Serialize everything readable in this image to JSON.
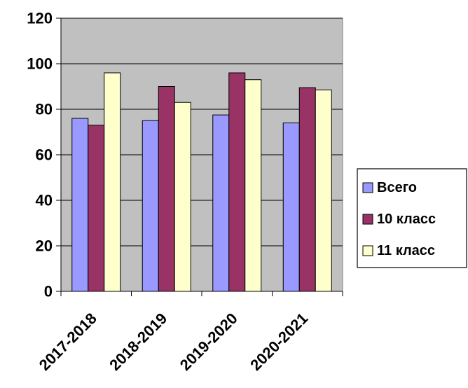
{
  "chart_data": {
    "type": "bar",
    "title": "",
    "xlabel": "",
    "ylabel": "",
    "categories": [
      "2017-2018",
      "2018-2019",
      "2019-2020",
      "2020-2021"
    ],
    "series": [
      {
        "name": "Всего",
        "values": [
          76,
          75,
          77.5,
          74
        ],
        "color": "#9999ff"
      },
      {
        "name": "10 класс",
        "values": [
          73,
          90,
          96,
          89.5
        ],
        "color": "#993366"
      },
      {
        "name": "11 класс",
        "values": [
          96,
          83,
          93,
          88.5
        ],
        "color": "#ffffcc"
      }
    ],
    "ylim": [
      0,
      120
    ],
    "yticks": [
      0,
      20,
      40,
      60,
      80,
      100,
      120
    ],
    "grid": true,
    "plot_background": "#c0c0c0",
    "legend_position": "right"
  }
}
